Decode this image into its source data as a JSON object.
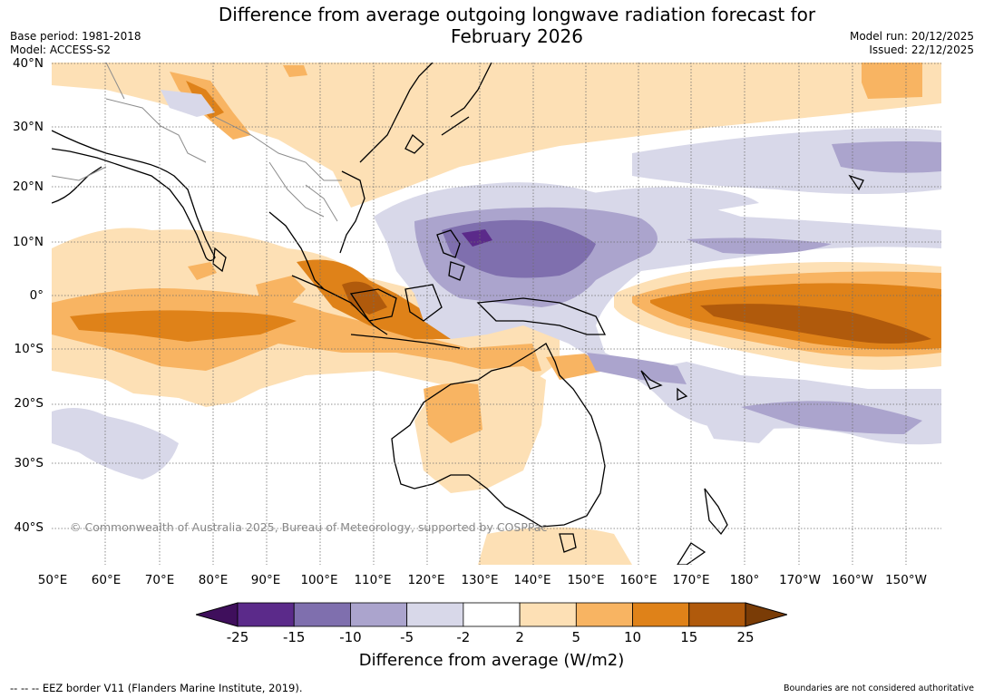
{
  "title_line1": "Difference from average outgoing longwave radiation forecast for",
  "title_line2": "February 2026",
  "base_period": "Base period: 1981-2018",
  "model": "Model: ACCESS-S2",
  "model_run": "Model run: 20/12/2025",
  "issued": "Issued: 22/12/2025",
  "lat_labels": [
    "40°N",
    "30°N",
    "20°N",
    "10°N",
    "0°",
    "10°S",
    "20°S",
    "30°S",
    "40°S"
  ],
  "lon_labels": [
    "50°E",
    "60°E",
    "70°E",
    "80°E",
    "90°E",
    "100°E",
    "110°E",
    "120°E",
    "130°E",
    "140°E",
    "150°E",
    "160°E",
    "170°E",
    "180°",
    "170°W",
    "160°W",
    "150°W"
  ],
  "copyright": "© Commonwealth of Australia 2025, Bureau of Meteorology, supported by COSPPac",
  "colorbar": {
    "ticks": [
      "-25",
      "-15",
      "-10",
      "-5",
      "-2",
      "2",
      "5",
      "10",
      "15",
      "25"
    ],
    "colors": [
      "#3f0f5c",
      "#5b2a8a",
      "#7f6fae",
      "#aba4cd",
      "#d8d8e9",
      "#ffffff",
      "#fde0b5",
      "#f8b462",
      "#df8219",
      "#b05a0c",
      "#7a3c06"
    ],
    "title": "Difference from average (W/m2)"
  },
  "footer_left": "-- -- -- EEZ border V11 (Flanders Marine Institute, 2019).",
  "footer_right": "Boundaries are not considered authoritative",
  "anomaly_regions": [
    {
      "level": "5 to 10",
      "lon": 170,
      "lat": -4
    },
    {
      "level": "15 to 25",
      "lon": 180,
      "lat": -6
    },
    {
      "level": "-10 to -5",
      "lon": 132,
      "lat": 8
    },
    {
      "level": "-15 to -10",
      "lon": 128,
      "lat": 10
    },
    {
      "level": "10 to 15",
      "lon": 88,
      "lat": -5
    },
    {
      "level": "10 to 15",
      "lon": 107,
      "lat": -1
    },
    {
      "level": "-5 to -2",
      "lon": 195,
      "lat": 19
    }
  ]
}
